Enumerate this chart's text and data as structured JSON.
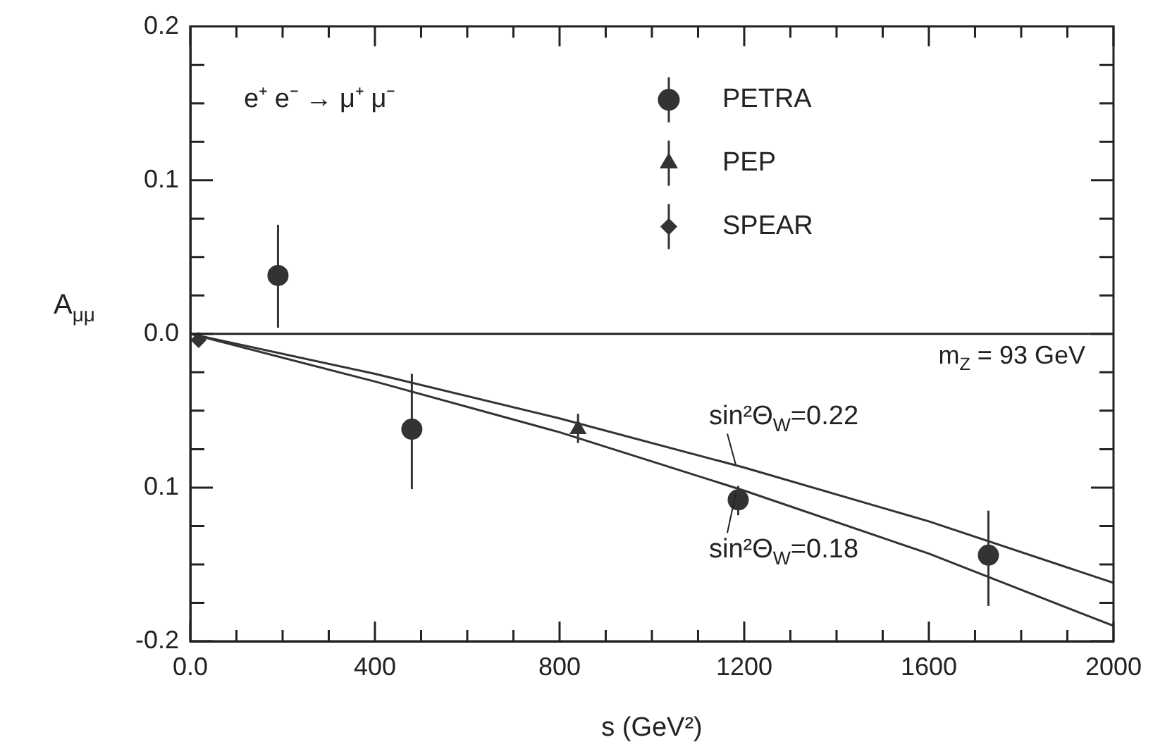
{
  "chart_data": {
    "type": "scatter",
    "xlabel": "s (GeV²)",
    "ylabel": "A$_{μμ}$",
    "annotations": [
      "e⁺ e⁻ → μ⁺ μ⁻",
      "m$_{Z}$ = 93 GeV"
    ],
    "xlim": [
      0,
      2000
    ],
    "ylim": [
      -0.2,
      0.2
    ],
    "xticks": [
      {
        "value": 0,
        "label": "0.0"
      },
      {
        "value": 100,
        "label": null
      },
      {
        "value": 200,
        "label": null
      },
      {
        "value": 300,
        "label": null
      },
      400,
      {
        "value": 500,
        "label": null
      },
      {
        "value": 600,
        "label": null
      },
      {
        "value": 700,
        "label": null
      },
      800,
      {
        "value": 900,
        "label": null
      },
      {
        "value": 1000,
        "label": null
      },
      {
        "value": 1100,
        "label": null
      },
      1200,
      {
        "value": 1300,
        "label": null
      },
      {
        "value": 1400,
        "label": null
      },
      {
        "value": 1500,
        "label": null
      },
      1600,
      {
        "value": 1700,
        "label": null
      },
      {
        "value": 1800,
        "label": null
      },
      {
        "value": 1900,
        "label": null
      },
      2000
    ],
    "yticks": [
      {
        "value": -0.2,
        "label": "-0.2"
      },
      {
        "value": -0.175,
        "label": null
      },
      {
        "value": -0.15,
        "label": null
      },
      {
        "value": -0.125,
        "label": null
      },
      {
        "value": -0.1,
        "label": "0.1"
      },
      {
        "value": -0.075,
        "label": null
      },
      {
        "value": -0.05,
        "label": null
      },
      {
        "value": -0.025,
        "label": null
      },
      {
        "value": 0,
        "label": "0.0"
      },
      {
        "value": 0.025,
        "label": null
      },
      {
        "value": 0.05,
        "label": null
      },
      {
        "value": 0.075,
        "label": null
      },
      0.1,
      {
        "value": 0.125,
        "label": null
      },
      {
        "value": 0.15,
        "label": null
      },
      {
        "value": 0.175,
        "label": null
      },
      0.2
    ],
    "grid": false,
    "legend": "top right",
    "ref_lines": [
      {
        "axis": "y",
        "value": 0
      }
    ],
    "series": [
      {
        "name": "PETRA",
        "color": "#333333",
        "marker": "circle",
        "x": [
          190,
          480,
          1187,
          1729
        ],
        "values": [
          0.038,
          -0.062,
          -0.108,
          -0.144
        ],
        "errors": [
          [
            0.004,
            0.071
          ],
          [
            -0.101,
            -0.026
          ],
          [
            -0.118,
            -0.099
          ],
          [
            -0.177,
            -0.115
          ]
        ]
      },
      {
        "name": "PEP",
        "color": "#333333",
        "marker": "triangle",
        "x": [
          840
        ],
        "values": [
          -0.062
        ],
        "errors": [
          [
            -0.071,
            -0.052
          ]
        ]
      },
      {
        "name": "SPEAR",
        "color": "#333333",
        "marker": "diamond",
        "x": [
          18
        ],
        "values": [
          -0.004
        ]
      },
      {
        "name": "sin²Θ$_{W}$=0.22",
        "type": "line",
        "color": "#333333",
        "marker": "none",
        "x": [
          0,
          400,
          800,
          1200,
          1600,
          2000
        ],
        "values": [
          0,
          -0.026,
          -0.055,
          -0.087,
          -0.122,
          -0.162
        ]
      },
      {
        "name": "sin²Θ$_{W}$=0.18",
        "type": "line",
        "color": "#333333",
        "marker": "none",
        "x": [
          0,
          400,
          800,
          1200,
          1600,
          2000
        ],
        "values": [
          0,
          -0.031,
          -0.064,
          -0.102,
          -0.143,
          -0.19
        ]
      }
    ]
  }
}
